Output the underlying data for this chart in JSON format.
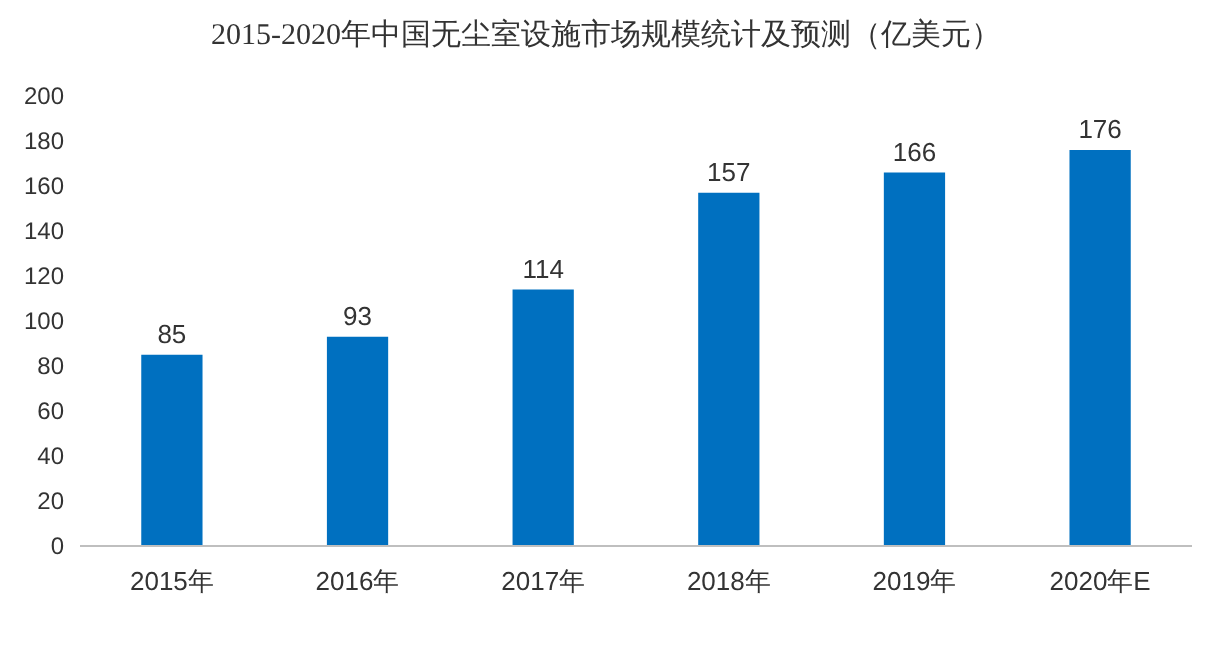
{
  "chart_data": {
    "type": "bar",
    "title": "2015-2020年中国无尘室设施市场规模统计及预测（亿美元）",
    "categories": [
      "2015年",
      "2016年",
      "2017年",
      "2018年",
      "2019年",
      "2020年E"
    ],
    "values": [
      85,
      93,
      114,
      157,
      166,
      176
    ],
    "color": "#0070c0",
    "ylim": [
      0,
      200
    ],
    "yticks": [
      0,
      20,
      40,
      60,
      80,
      100,
      120,
      140,
      160,
      180,
      200
    ],
    "data_labels": true,
    "grid": false
  }
}
